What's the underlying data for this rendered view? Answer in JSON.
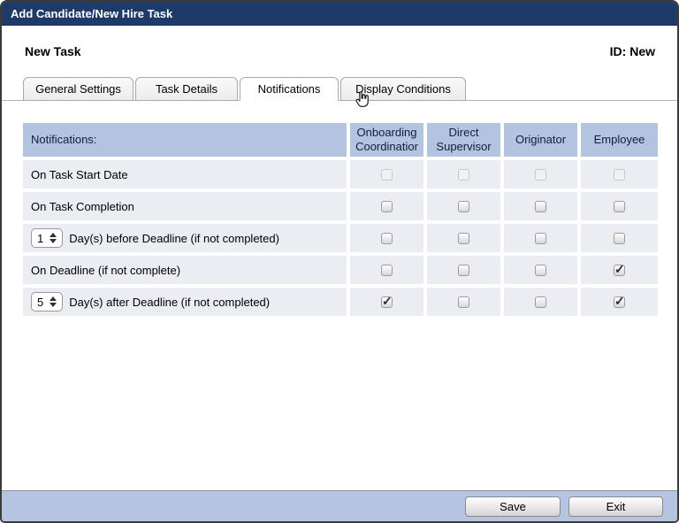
{
  "window": {
    "title": "Add Candidate/New Hire Task"
  },
  "header": {
    "title": "New Task",
    "id_label": "ID: New"
  },
  "tabs": [
    {
      "label": "General Settings",
      "active": false,
      "width": 125
    },
    {
      "label": "Task Details",
      "active": false,
      "width": 116
    },
    {
      "label": "Notifications",
      "active": true,
      "width": 112
    },
    {
      "label": "Display Conditions",
      "active": false,
      "width": 142
    }
  ],
  "cursor": "hand-pointer",
  "table": {
    "first_column_header": "Notifications:",
    "columns": [
      "Onboarding Coordinatior",
      "Direct Supervisor",
      "Originator",
      "Employee"
    ],
    "rows": [
      {
        "label": "On Task Start Date",
        "select": null,
        "checks": [
          {
            "checked": false,
            "disabled": true
          },
          {
            "checked": false,
            "disabled": true
          },
          {
            "checked": false,
            "disabled": true
          },
          {
            "checked": false,
            "disabled": true
          }
        ]
      },
      {
        "label": "On Task Completion",
        "select": null,
        "checks": [
          {
            "checked": false,
            "disabled": false
          },
          {
            "checked": false,
            "disabled": false
          },
          {
            "checked": false,
            "disabled": false
          },
          {
            "checked": false,
            "disabled": false
          }
        ]
      },
      {
        "label": "Day(s) before Deadline (if not completed)",
        "select": "1",
        "checks": [
          {
            "checked": false,
            "disabled": false
          },
          {
            "checked": false,
            "disabled": false
          },
          {
            "checked": false,
            "disabled": false
          },
          {
            "checked": false,
            "disabled": false
          }
        ]
      },
      {
        "label": "On Deadline (if not complete)",
        "select": null,
        "checks": [
          {
            "checked": false,
            "disabled": false
          },
          {
            "checked": false,
            "disabled": false
          },
          {
            "checked": false,
            "disabled": false
          },
          {
            "checked": true,
            "disabled": false
          }
        ]
      },
      {
        "label": "Day(s) after Deadline (if not completed)",
        "select": "5",
        "checks": [
          {
            "checked": true,
            "disabled": false
          },
          {
            "checked": false,
            "disabled": false
          },
          {
            "checked": false,
            "disabled": false
          },
          {
            "checked": true,
            "disabled": false
          }
        ]
      }
    ]
  },
  "footer": {
    "save_label": "Save",
    "exit_label": "Exit"
  },
  "colors": {
    "titlebar": "#1d3a68",
    "table_header": "#b3c4e1",
    "row_background": "#ebedf2",
    "footer": "#b4c4e1"
  }
}
